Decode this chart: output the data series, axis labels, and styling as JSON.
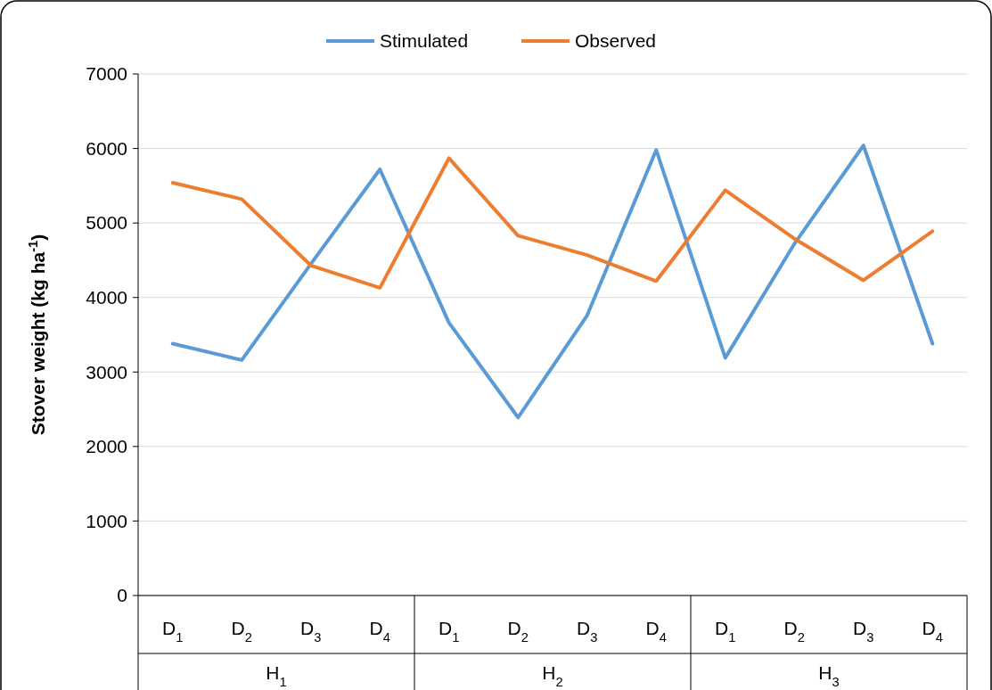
{
  "chart_data": {
    "type": "line",
    "ylabel": "Stover weight (kg ha$^{-1}$)",
    "categories": [
      "D$_{1}$",
      "D$_{2}$",
      "D$_{3}$",
      "D$_{4}$",
      "D$_{1}$",
      "D$_{2}$",
      "D$_{3}$",
      "D$_{4}$",
      "D$_{1}$",
      "D$_{2}$",
      "D$_{3}$",
      "D$_{4}$"
    ],
    "series": [
      {
        "name": "Stimulated",
        "color": "#5b9bd5",
        "values": [
          3380,
          3160,
          4450,
          5720,
          3660,
          2390,
          3760,
          5980,
          3190,
          4720,
          6040,
          3380
        ]
      },
      {
        "name": "Observed",
        "color": "#ed7d31",
        "values": [
          5540,
          5320,
          4430,
          4130,
          5870,
          4830,
          4570,
          4220,
          5440,
          4790,
          4230,
          4890
        ]
      }
    ],
    "ylim": [
      0,
      7000
    ],
    "yticks": [
      0,
      1000,
      2000,
      3000,
      4000,
      5000,
      6000,
      7000
    ],
    "grid": "y",
    "legend": "top",
    "marker": "none",
    "line_style": "solid",
    "annotations": [
      "H$_{1}$",
      "H$_{2}$",
      "H$_{3}$"
    ]
  }
}
